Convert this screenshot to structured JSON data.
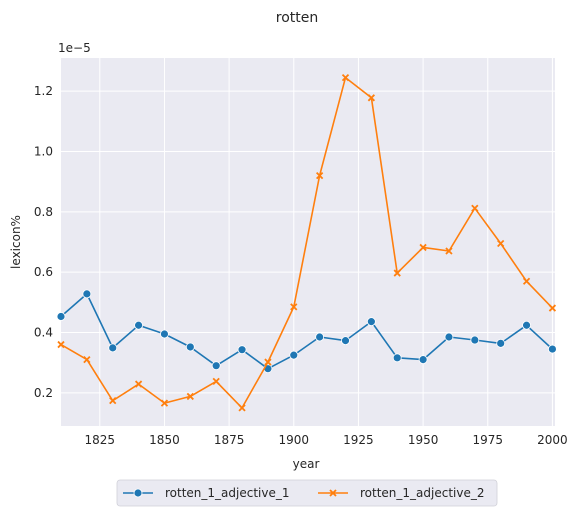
{
  "chart_data": {
    "type": "line",
    "title": "rotten",
    "xlabel": "year",
    "ylabel": "lexicon%",
    "y_scale_label": "1e−5",
    "xlim": [
      1810,
      2001
    ],
    "ylim": [
      0.09,
      1.31
    ],
    "x_ticks": [
      1825,
      1850,
      1875,
      1900,
      1925,
      1950,
      1975,
      2000
    ],
    "y_ticks": [
      0.2,
      0.4,
      0.6,
      0.8,
      1.0,
      1.2
    ],
    "y_tick_labels": [
      "0.2",
      "0.4",
      "0.6",
      "0.8",
      "1.0",
      "1.2"
    ],
    "grid": true,
    "background": "#eaeaf2",
    "legend_position": "bottom-center",
    "x": [
      1810,
      1820,
      1830,
      1840,
      1850,
      1860,
      1870,
      1880,
      1890,
      1900,
      1910,
      1920,
      1930,
      1940,
      1950,
      1960,
      1970,
      1980,
      1990,
      2000
    ],
    "series": [
      {
        "name": "rotten_1_adjective_1",
        "color": "#1f77b4",
        "marker": "circle",
        "values": [
          0.453,
          0.528,
          0.349,
          0.424,
          0.395,
          0.352,
          0.29,
          0.343,
          0.28,
          0.325,
          0.385,
          0.373,
          0.436,
          0.316,
          0.31,
          0.385,
          0.375,
          0.364,
          0.424,
          0.345
        ]
      },
      {
        "name": "rotten_1_adjective_2",
        "color": "#ff7f0e",
        "marker": "x",
        "values": [
          0.36,
          0.31,
          0.174,
          0.229,
          0.166,
          0.188,
          0.238,
          0.15,
          0.302,
          0.485,
          0.92,
          1.245,
          1.178,
          0.597,
          0.682,
          0.67,
          0.812,
          0.695,
          0.57,
          0.481
        ]
      }
    ]
  }
}
